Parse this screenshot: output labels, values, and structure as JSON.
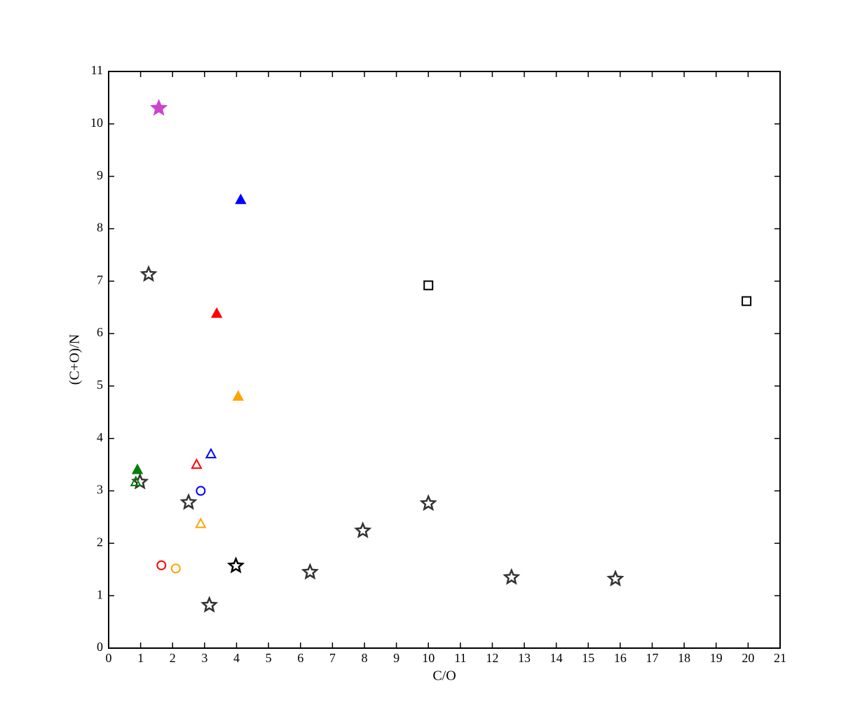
{
  "chart_data": {
    "type": "scatter",
    "xlabel": "C/O",
    "ylabel": "(C+O)/N",
    "xlim": [
      0,
      21
    ],
    "ylim": [
      0,
      11
    ],
    "xticks": [
      0,
      1,
      2,
      3,
      4,
      5,
      6,
      7,
      8,
      9,
      10,
      11,
      12,
      13,
      14,
      15,
      16,
      17,
      18,
      19,
      20,
      21
    ],
    "yticks": [
      0,
      1,
      2,
      3,
      4,
      5,
      6,
      7,
      8,
      9,
      10,
      11
    ],
    "grid": false,
    "series": [
      {
        "color": "#cc44cc",
        "marker": "star",
        "filled": true,
        "x": [
          1.57
        ],
        "y": [
          10.3
        ]
      },
      {
        "color": "#333333",
        "marker": "star",
        "filled": false,
        "x": [
          1.25,
          0.98,
          2.5,
          3.15,
          6.3,
          7.95,
          10.0,
          12.6,
          15.85
        ],
        "y": [
          7.13,
          3.17,
          2.78,
          0.82,
          1.45,
          2.24,
          2.76,
          1.35,
          1.32
        ]
      },
      {
        "color": "#000000",
        "marker": "star",
        "filled": false,
        "x": [
          3.98
        ],
        "y": [
          1.57
        ]
      },
      {
        "color": "#0000ff",
        "marker": "triangle",
        "filled": true,
        "x": [
          4.13
        ],
        "y": [
          8.55
        ]
      },
      {
        "color": "#ff0000",
        "marker": "triangle",
        "filled": true,
        "x": [
          3.38
        ],
        "y": [
          6.38
        ]
      },
      {
        "color": "#ffa500",
        "marker": "triangle",
        "filled": true,
        "x": [
          4.05
        ],
        "y": [
          4.8
        ]
      },
      {
        "color": "#008000",
        "marker": "triangle",
        "filled": true,
        "x": [
          0.9
        ],
        "y": [
          3.4
        ]
      },
      {
        "color": "#008000",
        "marker": "triangle",
        "filled": false,
        "x": [
          0.85
        ],
        "y": [
          3.17
        ]
      },
      {
        "color": "#ff0000",
        "marker": "triangle",
        "filled": false,
        "x": [
          2.75
        ],
        "y": [
          3.5
        ]
      },
      {
        "color": "#0000ff",
        "marker": "triangle",
        "filled": false,
        "x": [
          3.2
        ],
        "y": [
          3.7
        ]
      },
      {
        "color": "#ffa500",
        "marker": "triangle",
        "filled": false,
        "x": [
          2.88
        ],
        "y": [
          2.37
        ]
      },
      {
        "color": "#0000ff",
        "marker": "circle",
        "filled": false,
        "x": [
          2.88
        ],
        "y": [
          3.0
        ]
      },
      {
        "color": "#ff0000",
        "marker": "circle",
        "filled": false,
        "x": [
          1.65
        ],
        "y": [
          1.58
        ]
      },
      {
        "color": "#ffa500",
        "marker": "circle",
        "filled": false,
        "x": [
          2.1
        ],
        "y": [
          1.52
        ]
      },
      {
        "color": "#000000",
        "marker": "square",
        "filled": false,
        "x": [
          10.0,
          19.95
        ],
        "y": [
          6.92,
          6.62
        ]
      }
    ]
  }
}
